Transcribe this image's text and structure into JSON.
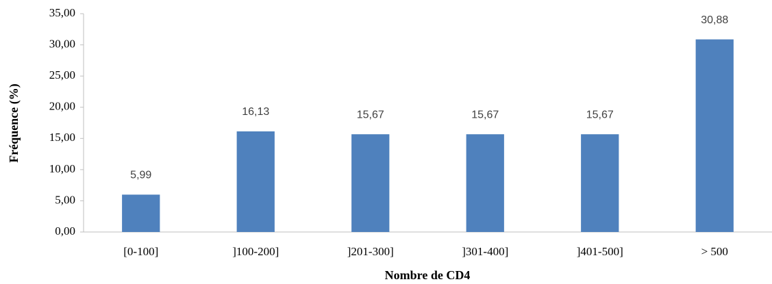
{
  "chart_data": {
    "type": "bar",
    "x_label": "Nombre de CD4",
    "y_label": "Fréquence (%)",
    "categories": [
      "[0-100]",
      "]100-200]",
      "]201-300]",
      "]301-400]",
      "]401-500]",
      "> 500"
    ],
    "values": [
      5.99,
      16.13,
      15.67,
      15.67,
      15.67,
      30.88
    ],
    "value_labels": [
      "5,99",
      "16,13",
      "15,67",
      "15,67",
      "15,67",
      "30,88"
    ],
    "color": "#4f81bd",
    "ylim": [
      0,
      35
    ],
    "yticks": [
      {
        "value": 0,
        "label": "0,00"
      },
      {
        "value": 5,
        "label": "5,00"
      },
      {
        "value": 10,
        "label": "10,00"
      },
      {
        "value": 15,
        "label": "15,00"
      },
      {
        "value": 20,
        "label": "20,00"
      },
      {
        "value": 25,
        "label": "25,00"
      },
      {
        "value": 30,
        "label": "30,00"
      },
      {
        "value": 35,
        "label": "35,00"
      }
    ],
    "grid": false
  }
}
